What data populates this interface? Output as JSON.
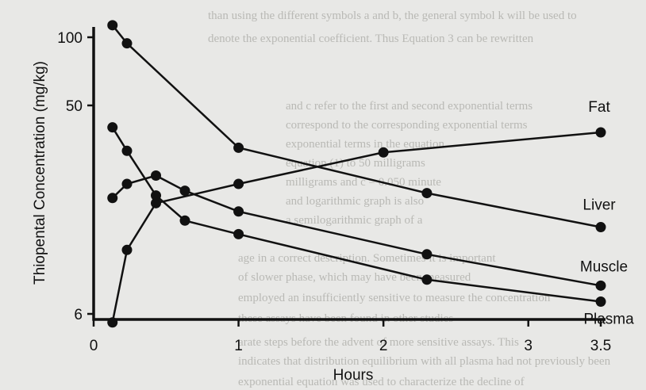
{
  "chart_data": {
    "type": "line",
    "xlabel": "Hours",
    "ylabel": "Thiopental Concentration (mg/kg)",
    "y_scale": "log",
    "xlim": [
      0,
      3.5
    ],
    "ylim": [
      6,
      100
    ],
    "x_ticks": [
      {
        "value": 0,
        "label": "0"
      },
      {
        "value": 1,
        "label": "1"
      },
      {
        "value": 2,
        "label": "2"
      },
      {
        "value": 3,
        "label": "3"
      },
      {
        "value": 3.5,
        "label": "3.5"
      }
    ],
    "y_ticks": [
      {
        "value": 6,
        "label": "6"
      },
      {
        "value": 50,
        "label": "50"
      },
      {
        "value": 100,
        "label": "100"
      }
    ],
    "grid": false,
    "legend": "direct labels at right end of each line",
    "series": [
      {
        "name": "Fat",
        "x": [
          0.13,
          0.23,
          0.43,
          1.0,
          2.0,
          3.5
        ],
        "y": [
          5.5,
          11.5,
          18.5,
          22.5,
          31,
          38
        ]
      },
      {
        "name": "Liver",
        "x": [
          0.13,
          0.23,
          1.0,
          2.3,
          3.5
        ],
        "y": [
          113,
          94,
          32.5,
          20.5,
          14.5
        ]
      },
      {
        "name": "Muscle",
        "x": [
          0.13,
          0.23,
          0.43,
          0.63,
          1.0,
          2.3,
          3.5
        ],
        "y": [
          19.5,
          22.5,
          24.5,
          21,
          17,
          11,
          8
        ]
      },
      {
        "name": "Plasma",
        "x": [
          0.13,
          0.23,
          0.43,
          0.63,
          1.0,
          2.3,
          3.5
        ],
        "y": [
          40,
          31.5,
          20,
          15.5,
          13.5,
          8.5,
          6.8
        ]
      }
    ]
  }
}
